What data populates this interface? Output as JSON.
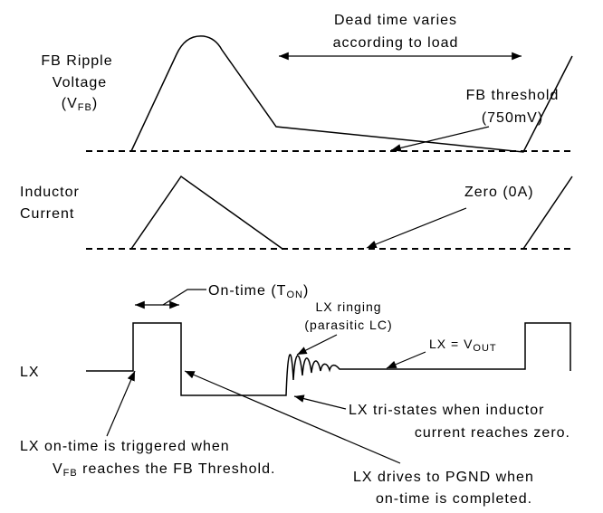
{
  "dead_time": [
    "Dead time varies",
    "according to load"
  ],
  "fb_ripple": {
    "lines": [
      "FB Ripple",
      "Voltage"
    ],
    "symbol": {
      "open": "(V",
      "sub": "FB",
      "close": ")"
    }
  },
  "fb_threshold": [
    "FB threshold",
    "(750mV)"
  ],
  "inductor_current": [
    "Inductor",
    "Current"
  ],
  "zero": "Zero (0A)",
  "on_time": {
    "main": "On-time (T",
    "sub": "ON",
    "close": ")"
  },
  "lx": "LX",
  "lx_ringing": [
    "LX ringing",
    "(parasitic LC)"
  ],
  "lx_vout": {
    "main": "LX = V",
    "sub": "OUT"
  },
  "tri_states": [
    "LX tri-states when inductor",
    "current reaches zero."
  ],
  "triggered": {
    "line1": "LX on-time is triggered when",
    "line2": {
      "main": "V",
      "sub": "FB",
      "rest": " reaches the FB Threshold."
    }
  },
  "pgnd": [
    "LX drives to PGND when",
    "on-time is completed."
  ]
}
